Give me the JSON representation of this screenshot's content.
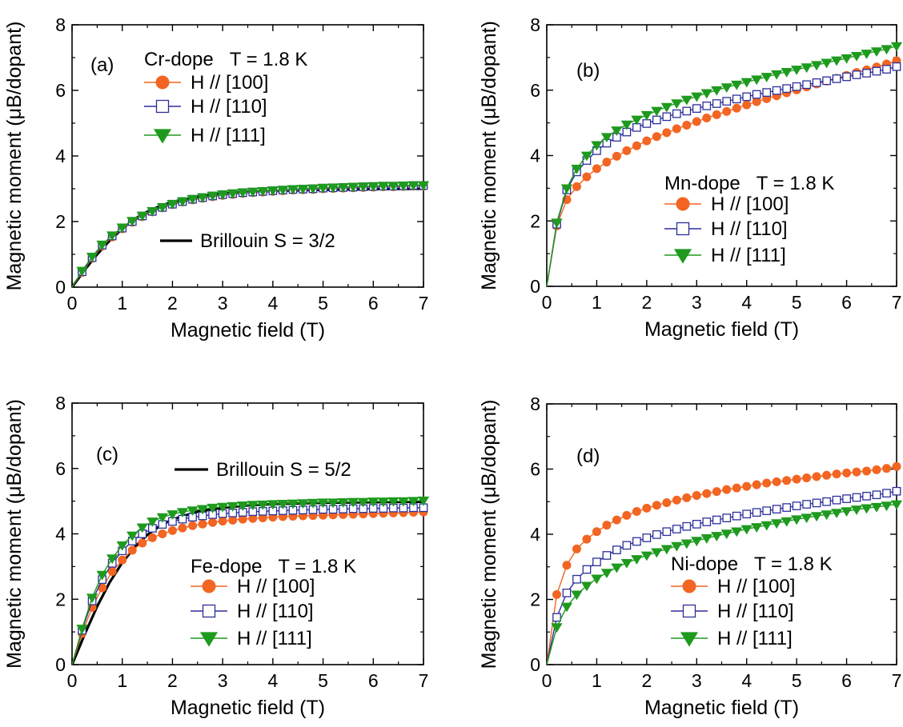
{
  "chart_data": [
    {
      "panel": "(a)",
      "type": "line",
      "title": "Cr-dope",
      "temperature": "T = 1.8 K",
      "xlabel": "Magnetic field (T)",
      "ylabel": "Magnetic moment (μB/dopant)",
      "xlim": [
        0,
        7
      ],
      "ylim": [
        0,
        8
      ],
      "xticks": [
        0,
        1,
        2,
        3,
        4,
        5,
        6,
        7
      ],
      "yticks": [
        0,
        2,
        4,
        6,
        8
      ],
      "x": [
        0,
        0.2,
        0.4,
        0.6,
        0.8,
        1.0,
        1.2,
        1.4,
        1.6,
        1.8,
        2.0,
        2.2,
        2.4,
        2.6,
        2.8,
        3.0,
        3.2,
        3.4,
        3.6,
        3.8,
        4.0,
        4.2,
        4.4,
        4.6,
        4.8,
        5.0,
        5.2,
        5.4,
        5.6,
        5.8,
        6.0,
        6.2,
        6.4,
        6.6,
        6.8,
        7.0
      ],
      "series": [
        {
          "name": "H // [100]",
          "marker": "circle",
          "color": "#f26522",
          "values": [
            0,
            0.45,
            0.88,
            1.25,
            1.53,
            1.78,
            1.98,
            2.15,
            2.3,
            2.42,
            2.52,
            2.6,
            2.66,
            2.71,
            2.76,
            2.8,
            2.83,
            2.86,
            2.88,
            2.9,
            2.92,
            2.94,
            2.96,
            2.97,
            2.98,
            3.0,
            3.01,
            3.02,
            3.03,
            3.04,
            3.05,
            3.06,
            3.06,
            3.07,
            3.08,
            3.08
          ]
        },
        {
          "name": "H // [110]",
          "marker": "open-square",
          "color": "#2b2f9b",
          "values": [
            0,
            0.47,
            0.9,
            1.28,
            1.56,
            1.8,
            2.0,
            2.17,
            2.31,
            2.43,
            2.53,
            2.61,
            2.68,
            2.73,
            2.78,
            2.82,
            2.85,
            2.88,
            2.9,
            2.92,
            2.94,
            2.96,
            2.98,
            2.99,
            3.0,
            3.02,
            3.03,
            3.04,
            3.05,
            3.06,
            3.07,
            3.08,
            3.08,
            3.09,
            3.1,
            3.1
          ]
        },
        {
          "name": "H // [111]",
          "marker": "filled-triangle-down",
          "color": "#1e9a1e",
          "values": [
            0,
            0.5,
            0.93,
            1.3,
            1.58,
            1.82,
            2.02,
            2.18,
            2.32,
            2.44,
            2.54,
            2.62,
            2.69,
            2.74,
            2.79,
            2.83,
            2.86,
            2.89,
            2.91,
            2.93,
            2.95,
            2.97,
            2.99,
            3.0,
            3.01,
            3.03,
            3.04,
            3.05,
            3.06,
            3.07,
            3.08,
            3.09,
            3.09,
            3.1,
            3.11,
            3.11
          ]
        }
      ],
      "fit": {
        "name": "Brillouin S = 3/2",
        "color": "#000000",
        "x": [
          0,
          0.25,
          0.5,
          0.75,
          1.0,
          1.25,
          1.5,
          1.75,
          2.0,
          2.5,
          3.0,
          3.5,
          4.0,
          5.0,
          6.0,
          7.0
        ],
        "values": [
          0,
          0.52,
          1.0,
          1.42,
          1.78,
          2.08,
          2.3,
          2.47,
          2.6,
          2.76,
          2.85,
          2.9,
          2.93,
          2.97,
          2.99,
          3.0
        ]
      }
    },
    {
      "panel": "(b)",
      "type": "line",
      "title": "Mn-dope",
      "temperature": "T = 1.8 K",
      "xlabel": "Magnetic field (T)",
      "ylabel": "Magnetic moment (μB/dopant)",
      "xlim": [
        0,
        7
      ],
      "ylim": [
        0,
        8
      ],
      "xticks": [
        0,
        1,
        2,
        3,
        4,
        5,
        6,
        7
      ],
      "yticks": [
        0,
        2,
        4,
        6,
        8
      ],
      "x": [
        0,
        0.2,
        0.4,
        0.6,
        0.8,
        1.0,
        1.2,
        1.4,
        1.6,
        1.8,
        2.0,
        2.2,
        2.4,
        2.6,
        2.8,
        3.0,
        3.2,
        3.4,
        3.6,
        3.8,
        4.0,
        4.2,
        4.4,
        4.6,
        4.8,
        5.0,
        5.2,
        5.4,
        5.6,
        5.8,
        6.0,
        6.2,
        6.4,
        6.6,
        6.8,
        7.0
      ],
      "series": [
        {
          "name": "H // [100]",
          "marker": "circle",
          "color": "#f26522",
          "values": [
            0,
            1.85,
            2.65,
            3.05,
            3.35,
            3.6,
            3.8,
            3.98,
            4.15,
            4.3,
            4.45,
            4.58,
            4.7,
            4.82,
            4.93,
            5.04,
            5.15,
            5.25,
            5.35,
            5.45,
            5.55,
            5.65,
            5.74,
            5.83,
            5.92,
            6.01,
            6.1,
            6.19,
            6.28,
            6.36,
            6.45,
            6.54,
            6.62,
            6.71,
            6.8,
            6.9
          ]
        },
        {
          "name": "H // [110]",
          "marker": "open-square",
          "color": "#2b2f9b",
          "values": [
            0,
            1.9,
            2.95,
            3.5,
            3.85,
            4.15,
            4.38,
            4.56,
            4.72,
            4.86,
            4.98,
            5.09,
            5.19,
            5.28,
            5.36,
            5.44,
            5.52,
            5.59,
            5.66,
            5.73,
            5.8,
            5.87,
            5.93,
            5.99,
            6.05,
            6.11,
            6.17,
            6.23,
            6.29,
            6.35,
            6.41,
            6.47,
            6.52,
            6.58,
            6.64,
            6.72
          ]
        },
        {
          "name": "H // [111]",
          "marker": "filled-triangle-down",
          "color": "#1e9a1e",
          "values": [
            0,
            1.95,
            3.0,
            3.6,
            4.0,
            4.32,
            4.57,
            4.77,
            4.95,
            5.1,
            5.24,
            5.37,
            5.49,
            5.6,
            5.71,
            5.81,
            5.91,
            6.0,
            6.09,
            6.17,
            6.25,
            6.33,
            6.41,
            6.49,
            6.56,
            6.63,
            6.7,
            6.77,
            6.84,
            6.91,
            6.98,
            7.05,
            7.12,
            7.19,
            7.26,
            7.35
          ]
        }
      ]
    },
    {
      "panel": "(c)",
      "type": "line",
      "title": "Fe-dope",
      "temperature": "T = 1.8 K",
      "xlabel": "Magnetic field (T)",
      "ylabel": "Magnetic moment (μB/dopant)",
      "xlim": [
        0,
        7
      ],
      "ylim": [
        0,
        8
      ],
      "xticks": [
        0,
        1,
        2,
        3,
        4,
        5,
        6,
        7
      ],
      "yticks": [
        0,
        2,
        4,
        6,
        8
      ],
      "x": [
        0,
        0.2,
        0.4,
        0.6,
        0.8,
        1.0,
        1.2,
        1.4,
        1.6,
        1.8,
        2.0,
        2.2,
        2.4,
        2.6,
        2.8,
        3.0,
        3.2,
        3.4,
        3.6,
        3.8,
        4.0,
        4.2,
        4.4,
        4.6,
        4.8,
        5.0,
        5.2,
        5.4,
        5.6,
        5.8,
        6.0,
        6.2,
        6.4,
        6.6,
        6.8,
        7.0
      ],
      "series": [
        {
          "name": "H // [100]",
          "marker": "circle",
          "color": "#f26522",
          "values": [
            0,
            0.95,
            1.75,
            2.35,
            2.85,
            3.2,
            3.5,
            3.72,
            3.88,
            4.0,
            4.1,
            4.18,
            4.25,
            4.3,
            4.35,
            4.39,
            4.42,
            4.45,
            4.47,
            4.49,
            4.51,
            4.53,
            4.54,
            4.55,
            4.56,
            4.57,
            4.58,
            4.59,
            4.6,
            4.61,
            4.62,
            4.63,
            4.64,
            4.65,
            4.66,
            4.67
          ]
        },
        {
          "name": "H // [110]",
          "marker": "open-square",
          "color": "#2b2f9b",
          "values": [
            0,
            1.05,
            1.95,
            2.6,
            3.1,
            3.48,
            3.78,
            4.0,
            4.17,
            4.29,
            4.38,
            4.45,
            4.51,
            4.55,
            4.59,
            4.62,
            4.64,
            4.66,
            4.68,
            4.69,
            4.7,
            4.71,
            4.72,
            4.73,
            4.74,
            4.75,
            4.75,
            4.76,
            4.77,
            4.77,
            4.78,
            4.78,
            4.79,
            4.79,
            4.8,
            4.8
          ]
        },
        {
          "name": "H // [111]",
          "marker": "filled-triangle-down",
          "color": "#1e9a1e",
          "values": [
            0,
            1.1,
            2.05,
            2.75,
            3.25,
            3.65,
            3.95,
            4.2,
            4.38,
            4.51,
            4.6,
            4.67,
            4.72,
            4.76,
            4.8,
            4.83,
            4.85,
            4.87,
            4.89,
            4.9,
            4.91,
            4.92,
            4.93,
            4.94,
            4.95,
            4.96,
            4.96,
            4.97,
            4.98,
            4.98,
            4.99,
            4.99,
            5.0,
            5.0,
            5.01,
            5.02
          ]
        }
      ],
      "fit": {
        "name": "Brillouin S = 5/2",
        "color": "#000000",
        "x": [
          0,
          0.25,
          0.5,
          0.75,
          1.0,
          1.25,
          1.5,
          1.75,
          2.0,
          2.5,
          3.0,
          3.5,
          4.0,
          5.0,
          6.0,
          7.0
        ],
        "values": [
          0,
          0.92,
          1.78,
          2.52,
          3.12,
          3.6,
          3.97,
          4.24,
          4.44,
          4.68,
          4.8,
          4.87,
          4.91,
          4.95,
          4.97,
          4.98
        ]
      }
    },
    {
      "panel": "(d)",
      "type": "line",
      "title": "Ni-dope",
      "temperature": "T = 1.8 K",
      "xlabel": "Magnetic field (T)",
      "ylabel": "Magnetic moment (μB/dopant)",
      "xlim": [
        0,
        7
      ],
      "ylim": [
        0,
        8
      ],
      "xticks": [
        0,
        1,
        2,
        3,
        4,
        5,
        6,
        7
      ],
      "yticks": [
        0,
        2,
        4,
        6,
        8
      ],
      "x": [
        0,
        0.2,
        0.4,
        0.6,
        0.8,
        1.0,
        1.2,
        1.4,
        1.6,
        1.8,
        2.0,
        2.2,
        2.4,
        2.6,
        2.8,
        3.0,
        3.2,
        3.4,
        3.6,
        3.8,
        4.0,
        4.2,
        4.4,
        4.6,
        4.8,
        5.0,
        5.2,
        5.4,
        5.6,
        5.8,
        6.0,
        6.2,
        6.4,
        6.6,
        6.8,
        7.0
      ],
      "series": [
        {
          "name": "H // [100]",
          "marker": "circle",
          "color": "#f26522",
          "values": [
            0,
            2.15,
            3.05,
            3.55,
            3.85,
            4.08,
            4.28,
            4.44,
            4.58,
            4.7,
            4.8,
            4.89,
            4.97,
            5.05,
            5.12,
            5.19,
            5.25,
            5.31,
            5.37,
            5.42,
            5.47,
            5.52,
            5.57,
            5.61,
            5.65,
            5.69,
            5.73,
            5.77,
            5.81,
            5.85,
            5.88,
            5.91,
            5.94,
            5.98,
            6.02,
            6.08
          ]
        },
        {
          "name": "H // [110]",
          "marker": "open-square",
          "color": "#2b2f9b",
          "values": [
            0,
            1.45,
            2.2,
            2.62,
            2.92,
            3.15,
            3.35,
            3.52,
            3.66,
            3.78,
            3.89,
            3.99,
            4.08,
            4.16,
            4.24,
            4.31,
            4.38,
            4.44,
            4.5,
            4.56,
            4.62,
            4.67,
            4.72,
            4.77,
            4.82,
            4.87,
            4.92,
            4.96,
            5.0,
            5.05,
            5.09,
            5.13,
            5.17,
            5.21,
            5.26,
            5.32
          ]
        },
        {
          "name": "H // [111]",
          "marker": "filled-triangle-down",
          "color": "#1e9a1e",
          "values": [
            0,
            1.15,
            1.78,
            2.15,
            2.42,
            2.64,
            2.82,
            2.98,
            3.12,
            3.24,
            3.35,
            3.45,
            3.55,
            3.64,
            3.72,
            3.8,
            3.88,
            3.95,
            4.02,
            4.09,
            4.16,
            4.22,
            4.28,
            4.34,
            4.4,
            4.46,
            4.51,
            4.56,
            4.61,
            4.66,
            4.71,
            4.76,
            4.8,
            4.84,
            4.88,
            4.92
          ]
        }
      ]
    }
  ]
}
